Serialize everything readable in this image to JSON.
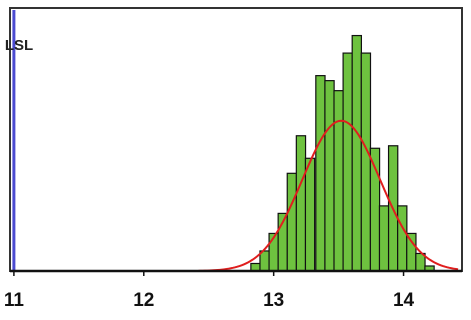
{
  "chart_data": {
    "type": "bar",
    "title": "",
    "xlabel": "",
    "ylabel": "",
    "xlim": [
      10.97,
      14.45
    ],
    "ylim": [
      0,
      10.5
    ],
    "x_ticks": [
      {
        "value": 11,
        "label": "11"
      },
      {
        "value": 12,
        "label": "12"
      },
      {
        "value": 13,
        "label": "13"
      },
      {
        "value": 14,
        "label": "14"
      }
    ],
    "bin_width": 0.071,
    "histogram": {
      "name": "",
      "color": "#6ec23f",
      "bins": [
        {
          "x": 12.86,
          "value": 0.3
        },
        {
          "x": 12.93,
          "value": 0.8
        },
        {
          "x": 13.0,
          "value": 1.5
        },
        {
          "x": 13.07,
          "value": 2.3
        },
        {
          "x": 13.14,
          "value": 3.9
        },
        {
          "x": 13.21,
          "value": 5.4
        },
        {
          "x": 13.28,
          "value": 4.5
        },
        {
          "x": 13.36,
          "value": 7.8
        },
        {
          "x": 13.43,
          "value": 7.6
        },
        {
          "x": 13.5,
          "value": 7.2
        },
        {
          "x": 13.57,
          "value": 8.7
        },
        {
          "x": 13.64,
          "value": 9.4
        },
        {
          "x": 13.71,
          "value": 8.7
        },
        {
          "x": 13.78,
          "value": 4.9
        },
        {
          "x": 13.85,
          "value": 2.6
        },
        {
          "x": 13.92,
          "value": 5.0
        },
        {
          "x": 13.99,
          "value": 2.6
        },
        {
          "x": 14.06,
          "value": 1.5
        },
        {
          "x": 14.13,
          "value": 0.7
        },
        {
          "x": 14.2,
          "value": 0.2
        }
      ]
    },
    "fit_curve": {
      "name": "",
      "color": "#e01e1e",
      "type": "normal",
      "mean": 13.52,
      "sd": 0.3,
      "peak": 6.0,
      "x_range": [
        12.42,
        14.42
      ]
    },
    "reference_lines": [
      {
        "label": "LSL",
        "value": 11.0,
        "color": "#4b4bd0"
      }
    ],
    "grid": false,
    "legend": "none"
  }
}
